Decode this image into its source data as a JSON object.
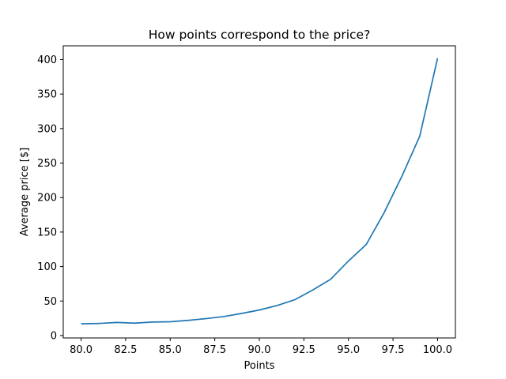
{
  "chart_data": {
    "type": "line",
    "title": "How points correspond to the price?",
    "xlabel": "Points",
    "ylabel": "Average price [$]",
    "xlim": [
      79,
      101
    ],
    "ylim": [
      -3.5,
      420
    ],
    "xticks": [
      80.0,
      82.5,
      85.0,
      87.5,
      90.0,
      92.5,
      95.0,
      97.5,
      100.0
    ],
    "xtick_labels": [
      "80.0",
      "82.5",
      "85.0",
      "87.5",
      "90.0",
      "92.5",
      "95.0",
      "97.5",
      "100.0"
    ],
    "yticks": [
      0,
      50,
      100,
      150,
      200,
      250,
      300,
      350,
      400
    ],
    "ytick_labels": [
      "0",
      "50",
      "100",
      "150",
      "200",
      "250",
      "300",
      "350",
      "400"
    ],
    "grid": false,
    "series": [
      {
        "color": "#1f77b4",
        "x": [
          80,
          81,
          82,
          83,
          84,
          85,
          86,
          87,
          88,
          89,
          90,
          91,
          92,
          93,
          94,
          95,
          96,
          97,
          98,
          99,
          100
        ],
        "y": [
          17,
          17.5,
          19,
          18,
          19.5,
          20,
          22,
          24.5,
          27.5,
          32,
          37,
          43.5,
          52,
          66,
          81.5,
          108,
          132,
          178,
          231,
          289,
          402
        ]
      }
    ]
  }
}
